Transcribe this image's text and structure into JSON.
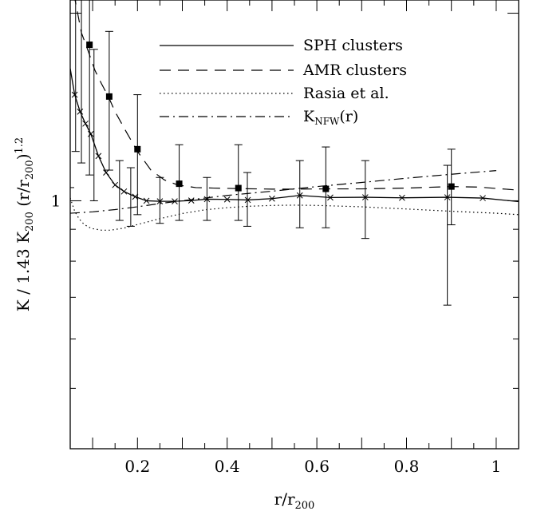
{
  "chart_data": {
    "type": "line",
    "xlabel": {
      "main": "r/r",
      "sub": "200"
    },
    "ylabel": {
      "parts": [
        "K  /  1.43 K",
        "200",
        " (r/r",
        "200",
        ")",
        "1.2"
      ]
    },
    "xlim": [
      0.05,
      1.05
    ],
    "ylim": [
      0.4,
      2.1
    ],
    "yscale": "log",
    "x_ticks": [
      0.2,
      0.4,
      0.6,
      0.8,
      1.0
    ],
    "x_tick_labels": [
      "0.2",
      "0.4",
      "0.6",
      "0.8",
      "1"
    ],
    "y_ticks": [
      1.0
    ],
    "y_tick_labels": [
      "1"
    ],
    "legend_position": "top-right",
    "legend": [
      {
        "label": "SPH clusters",
        "style": "solid"
      },
      {
        "label": "AMR clusters",
        "style": "dashed"
      },
      {
        "label": "Rasia et al.",
        "style": "dotted"
      },
      {
        "label_main": "K",
        "label_sub": "NFW",
        "label_tail": "(r)",
        "style": "dashdot"
      }
    ],
    "series": [
      {
        "name": "SPH clusters",
        "style": "solid",
        "marker": "x",
        "x": [
          0.05,
          0.06,
          0.072,
          0.084,
          0.096,
          0.113,
          0.13,
          0.15,
          0.17,
          0.195,
          0.22,
          0.25,
          0.283,
          0.32,
          0.355,
          0.4,
          0.446,
          0.5,
          0.562,
          0.63,
          0.708,
          0.79,
          0.891,
          0.97,
          1.05
        ],
        "y": [
          1.63,
          1.48,
          1.39,
          1.33,
          1.28,
          1.18,
          1.11,
          1.06,
          1.035,
          1.015,
          1.0,
          0.998,
          0.998,
          1.001,
          1.006,
          1.005,
          1.003,
          1.008,
          1.02,
          1.012,
          1.013,
          1.011,
          1.013,
          1.01,
          0.997
        ]
      },
      {
        "name": "AMR clusters",
        "style": "dashed",
        "marker": "square",
        "x": [
          0.05,
          0.062,
          0.075,
          0.09,
          0.105,
          0.12,
          0.135,
          0.15,
          0.175,
          0.2,
          0.23,
          0.26,
          0.29,
          0.33,
          0.37,
          0.425,
          0.5,
          0.55,
          0.62,
          0.7,
          0.8,
          0.9,
          0.96,
          1.05
        ],
        "y": [
          2.3,
          2.08,
          1.86,
          1.74,
          1.62,
          1.54,
          1.47,
          1.39,
          1.29,
          1.2,
          1.12,
          1.08,
          1.06,
          1.05,
          1.048,
          1.046,
          1.044,
          1.044,
          1.045,
          1.045,
          1.048,
          1.054,
          1.052,
          1.04
        ],
        "points_x": [
          0.093,
          0.137,
          0.2,
          0.293,
          0.425,
          0.62,
          0.9
        ],
        "points_y": [
          1.78,
          1.47,
          1.21,
          1.065,
          1.048,
          1.045,
          1.054
        ]
      },
      {
        "name": "Rasia et al.",
        "style": "dotted",
        "x": [
          0.05,
          0.06,
          0.07,
          0.08,
          0.09,
          0.1,
          0.12,
          0.14,
          0.17,
          0.2,
          0.25,
          0.3,
          0.35,
          0.4,
          0.45,
          0.5,
          0.55,
          0.6,
          0.7,
          0.8,
          0.9,
          1.0,
          1.05
        ],
        "y": [
          1.01,
          0.962,
          0.935,
          0.918,
          0.908,
          0.902,
          0.897,
          0.897,
          0.904,
          0.916,
          0.936,
          0.954,
          0.967,
          0.975,
          0.98,
          0.983,
          0.984,
          0.983,
          0.978,
          0.97,
          0.962,
          0.955,
          0.95
        ]
      },
      {
        "name": "K_NFW(r)",
        "style": "dashdot",
        "x": [
          0.05,
          0.1,
          0.15,
          0.2,
          0.25,
          0.3,
          0.35,
          0.4,
          0.45,
          0.5,
          0.6,
          0.7,
          0.8,
          0.9,
          1.0
        ],
        "y": [
          0.955,
          0.96,
          0.968,
          0.978,
          0.99,
          1.0,
          1.01,
          1.02,
          1.028,
          1.036,
          1.054,
          1.07,
          1.087,
          1.103,
          1.118
        ]
      }
    ],
    "error_bars": [
      {
        "x": 0.05,
        "lo": 1.05,
        "hi": 2.3
      },
      {
        "x": 0.062,
        "lo": 1.2,
        "hi": 2.3
      },
      {
        "x": 0.075,
        "lo": 1.15,
        "hi": 2.15
      },
      {
        "x": 0.093,
        "lo": 1.1,
        "hi": 2.3
      },
      {
        "x": 0.103,
        "lo": 1.0,
        "hi": 1.75
      },
      {
        "x": 0.137,
        "lo": 1.12,
        "hi": 1.87
      },
      {
        "x": 0.16,
        "lo": 0.93,
        "hi": 1.16
      },
      {
        "x": 0.185,
        "lo": 0.91,
        "hi": 1.13
      },
      {
        "x": 0.2,
        "lo": 0.95,
        "hi": 1.48
      },
      {
        "x": 0.25,
        "lo": 0.92,
        "hi": 1.09
      },
      {
        "x": 0.293,
        "lo": 0.93,
        "hi": 1.23
      },
      {
        "x": 0.355,
        "lo": 0.93,
        "hi": 1.09
      },
      {
        "x": 0.425,
        "lo": 0.93,
        "hi": 1.23
      },
      {
        "x": 0.445,
        "lo": 0.91,
        "hi": 1.11
      },
      {
        "x": 0.562,
        "lo": 0.905,
        "hi": 1.16
      },
      {
        "x": 0.62,
        "lo": 0.905,
        "hi": 1.22
      },
      {
        "x": 0.708,
        "lo": 0.87,
        "hi": 1.16
      },
      {
        "x": 0.891,
        "lo": 0.68,
        "hi": 1.14
      },
      {
        "x": 0.9,
        "lo": 0.915,
        "hi": 1.21
      }
    ]
  }
}
